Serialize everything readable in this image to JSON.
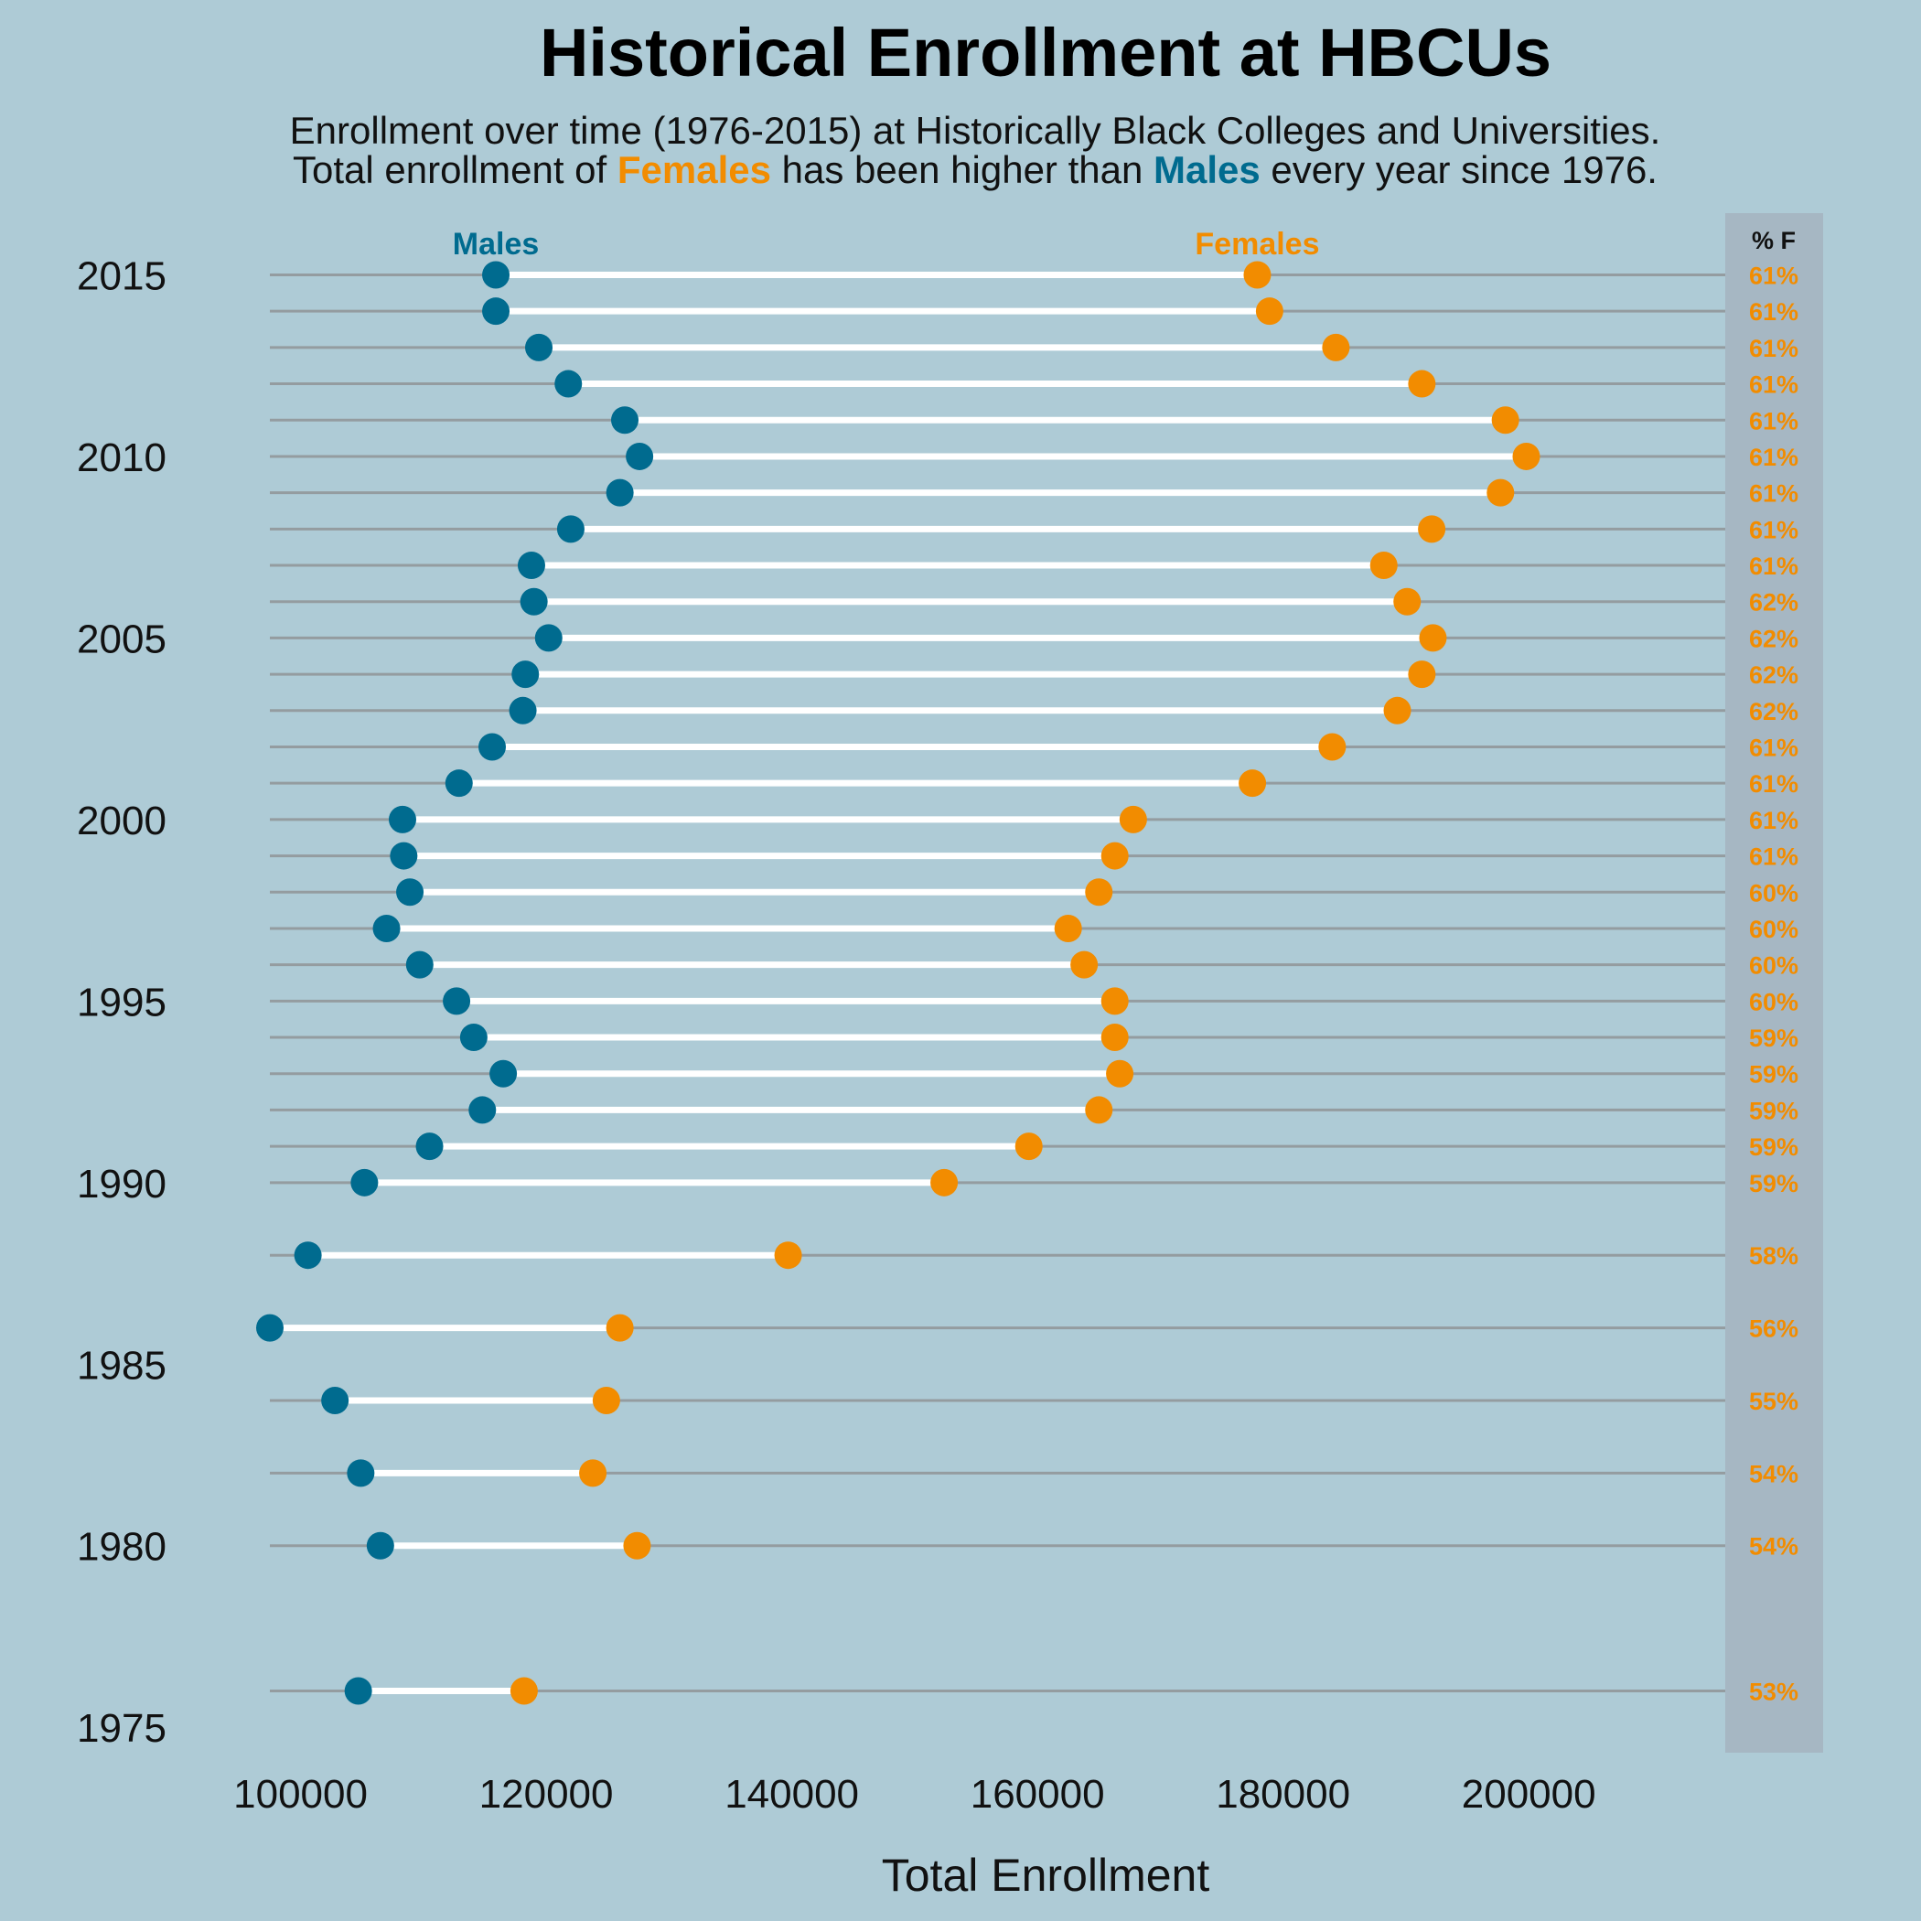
{
  "colors": {
    "background": "#aecbd6",
    "males": "#006b8f",
    "females": "#f28c00",
    "connector": "#ffffff",
    "grid": "#949ca0",
    "pct_panel": "#a6b7c3"
  },
  "chart_data": {
    "type": "dumbbell",
    "title": "Historical Enrollment at HBCUs",
    "subtitle": {
      "line1": "Enrollment over time (1976-2015) at Historically Black Colleges and Universities.",
      "line2_part1": "Total enrollment of ",
      "line2_females": "Females",
      "line2_part2": " has been higher than ",
      "line2_males": "Males",
      "line2_part3": " every year since 1976."
    },
    "xlabel": "Total Enrollment",
    "ylabel": "",
    "xlim": [
      97500,
      216000
    ],
    "ylim": [
      1974.3,
      2016.7
    ],
    "x_ticks": [
      100000,
      120000,
      140000,
      160000,
      180000,
      200000
    ],
    "y_ticks": [
      1975,
      1980,
      1985,
      1990,
      1995,
      2000,
      2005,
      2010,
      2015
    ],
    "series_labels": {
      "males": "Males",
      "females": "Females"
    },
    "pct_header": "% F",
    "rows": [
      {
        "year": 2015,
        "males": 115900,
        "females": 177900,
        "pct": "61%"
      },
      {
        "year": 2014,
        "males": 115900,
        "females": 178900,
        "pct": "61%"
      },
      {
        "year": 2013,
        "males": 119400,
        "females": 184300,
        "pct": "61%"
      },
      {
        "year": 2012,
        "males": 121800,
        "females": 191300,
        "pct": "61%"
      },
      {
        "year": 2011,
        "males": 126400,
        "females": 198100,
        "pct": "61%"
      },
      {
        "year": 2010,
        "males": 127600,
        "females": 199800,
        "pct": "61%"
      },
      {
        "year": 2009,
        "males": 126000,
        "females": 197700,
        "pct": "61%"
      },
      {
        "year": 2008,
        "males": 122000,
        "females": 192100,
        "pct": "61%"
      },
      {
        "year": 2007,
        "males": 118800,
        "females": 188200,
        "pct": "61%"
      },
      {
        "year": 2006,
        "males": 119000,
        "females": 190100,
        "pct": "62%"
      },
      {
        "year": 2005,
        "males": 120200,
        "females": 192200,
        "pct": "62%"
      },
      {
        "year": 2004,
        "males": 118300,
        "females": 191300,
        "pct": "62%"
      },
      {
        "year": 2003,
        "males": 118100,
        "females": 189300,
        "pct": "62%"
      },
      {
        "year": 2002,
        "males": 115600,
        "females": 184000,
        "pct": "61%"
      },
      {
        "year": 2001,
        "males": 112900,
        "females": 177500,
        "pct": "61%"
      },
      {
        "year": 2000,
        "males": 108300,
        "females": 167800,
        "pct": "61%"
      },
      {
        "year": 1999,
        "males": 108400,
        "females": 166300,
        "pct": "61%"
      },
      {
        "year": 1998,
        "males": 108900,
        "females": 165000,
        "pct": "60%"
      },
      {
        "year": 1997,
        "males": 107000,
        "females": 162500,
        "pct": "60%"
      },
      {
        "year": 1996,
        "males": 109700,
        "females": 163800,
        "pct": "60%"
      },
      {
        "year": 1995,
        "males": 112700,
        "females": 166300,
        "pct": "60%"
      },
      {
        "year": 1994,
        "males": 114100,
        "females": 166300,
        "pct": "59%"
      },
      {
        "year": 1993,
        "males": 116500,
        "females": 166700,
        "pct": "59%"
      },
      {
        "year": 1992,
        "males": 114800,
        "females": 165000,
        "pct": "59%"
      },
      {
        "year": 1991,
        "males": 110500,
        "females": 159300,
        "pct": "59%"
      },
      {
        "year": 1990,
        "males": 105200,
        "females": 152400,
        "pct": "59%"
      },
      {
        "year": 1988,
        "males": 100600,
        "females": 139700,
        "pct": "58%"
      },
      {
        "year": 1986,
        "males": 97500,
        "females": 126000,
        "pct": "56%"
      },
      {
        "year": 1984,
        "males": 102800,
        "females": 124900,
        "pct": "55%"
      },
      {
        "year": 1982,
        "males": 104900,
        "females": 123800,
        "pct": "54%"
      },
      {
        "year": 1980,
        "males": 106500,
        "females": 127400,
        "pct": "54%"
      },
      {
        "year": 1976,
        "males": 104700,
        "females": 118200,
        "pct": "53%"
      }
    ]
  }
}
